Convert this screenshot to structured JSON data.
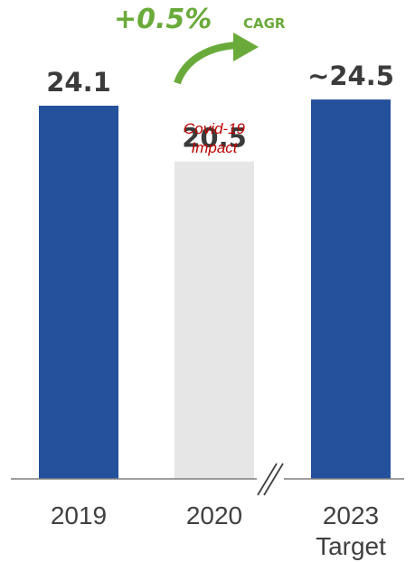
{
  "chart_data": {
    "type": "bar",
    "categories": [
      "2019",
      "2020",
      "2023"
    ],
    "category_sublabels": [
      "",
      "",
      "Target"
    ],
    "values": [
      24.1,
      20.5,
      24.5
    ],
    "value_labels": [
      "24.1",
      "20.5",
      "~24.5"
    ],
    "bar_colors": [
      "#25509b",
      "#e6e6e6",
      "#25509b"
    ],
    "ylim": [
      0,
      30
    ],
    "grid": false,
    "annotations": {
      "cagr_value": "+0.5%",
      "cagr_label": "CAGR",
      "covid_line1": "Covid-19",
      "covid_line2": "Impact"
    },
    "colors": {
      "accent": "#6aaa3a",
      "note": "#c00000",
      "axis": "#7f7f7f"
    }
  }
}
